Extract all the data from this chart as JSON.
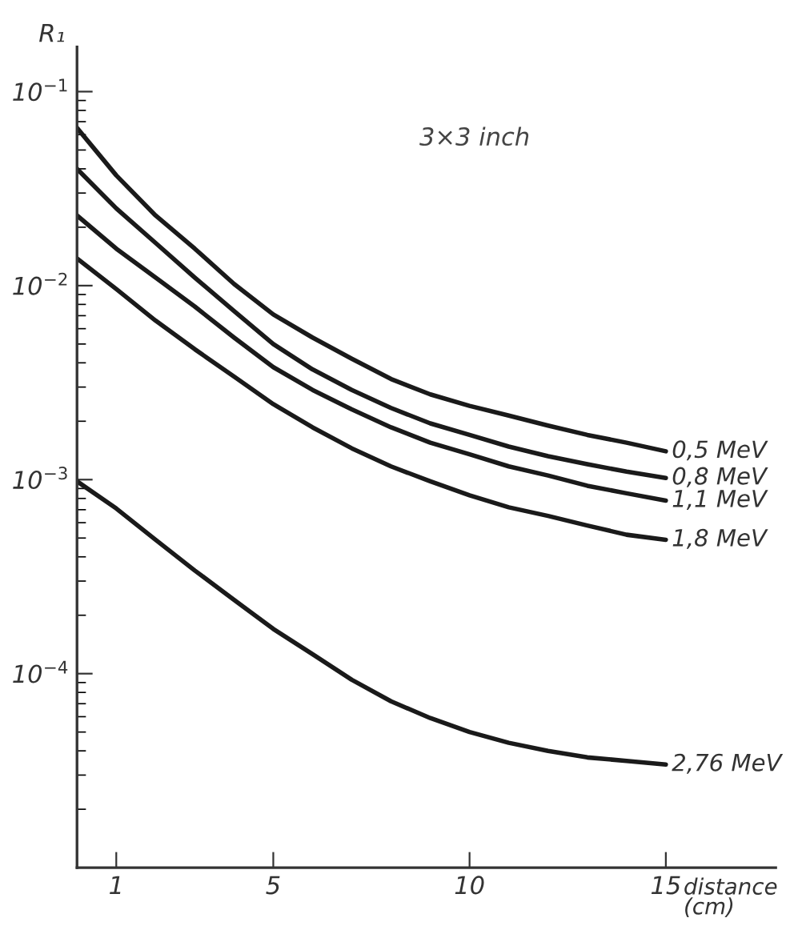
{
  "chart_data": {
    "type": "line",
    "xlabel": "distance\n(cm)",
    "ylabel": "R₁",
    "annotations": [
      "3×3 inch"
    ],
    "log": "y",
    "grid": false,
    "marker": "none",
    "line_style": "solid",
    "xlim": [
      0,
      17.8
    ],
    "xticks": [
      1,
      5,
      10,
      15
    ],
    "ylim": [
      1e-05,
      0.17
    ],
    "yticks": [
      {
        "value": 0.0001,
        "label": "10$^{−4}$"
      },
      {
        "value": 0.001,
        "label": "10$^{−3}$"
      },
      {
        "value": 0.01,
        "label": "10$^{−2}$"
      },
      {
        "value": 0.1,
        "label": "10$^{−1}$"
      }
    ],
    "series": [
      {
        "name": "0,5 MeV",
        "color": "#1a1a1a",
        "x": [
          0,
          1,
          2,
          3,
          4,
          5,
          6,
          7,
          8,
          9,
          10,
          11,
          12,
          13,
          14,
          15
        ],
        "values": [
          0.065,
          0.037,
          0.023,
          0.0155,
          0.0102,
          0.0071,
          0.0054,
          0.0042,
          0.0033,
          0.00275,
          0.0024,
          0.00214,
          0.0019,
          0.0017,
          0.00155,
          0.0014
        ]
      },
      {
        "name": "0,8 MeV",
        "color": "#1a1a1a",
        "x": [
          0,
          1,
          2,
          3,
          4,
          5,
          6,
          7,
          8,
          9,
          10,
          11,
          12,
          13,
          14,
          15
        ],
        "values": [
          0.04,
          0.025,
          0.0166,
          0.011,
          0.0074,
          0.005,
          0.0037,
          0.0029,
          0.00234,
          0.00195,
          0.0017,
          0.00148,
          0.00132,
          0.0012,
          0.0011,
          0.00102
        ]
      },
      {
        "name": "1,1 MeV",
        "color": "#1a1a1a",
        "x": [
          0,
          1,
          2,
          3,
          4,
          5,
          6,
          7,
          8,
          9,
          10,
          11,
          12,
          13,
          14,
          15
        ],
        "values": [
          0.023,
          0.0155,
          0.011,
          0.0078,
          0.0054,
          0.0038,
          0.0029,
          0.0023,
          0.00186,
          0.00155,
          0.00135,
          0.00117,
          0.00105,
          0.00093,
          0.00085,
          0.00078
        ]
      },
      {
        "name": "1,8 MeV",
        "color": "#1a1a1a",
        "x": [
          0,
          1,
          2,
          3,
          4,
          5,
          6,
          7,
          8,
          9,
          10,
          11,
          12,
          13,
          14,
          15
        ],
        "values": [
          0.0138,
          0.0096,
          0.0066,
          0.0047,
          0.0034,
          0.00245,
          0.00186,
          0.00145,
          0.00117,
          0.00098,
          0.00083,
          0.00072,
          0.00065,
          0.00058,
          0.00052,
          0.00049
        ]
      },
      {
        "name": "2,76 MeV",
        "color": "#1a1a1a",
        "x": [
          0,
          1,
          2,
          3,
          4,
          5,
          6,
          7,
          8,
          9,
          10,
          11,
          12,
          13,
          14,
          15
        ],
        "values": [
          0.00098,
          0.00071,
          0.00049,
          0.00034,
          0.00024,
          0.00017,
          0.000126,
          9.3e-05,
          7.2e-05,
          5.9e-05,
          5e-05,
          4.4e-05,
          4e-05,
          3.7e-05,
          3.55e-05,
          3.4e-05
        ]
      }
    ]
  }
}
